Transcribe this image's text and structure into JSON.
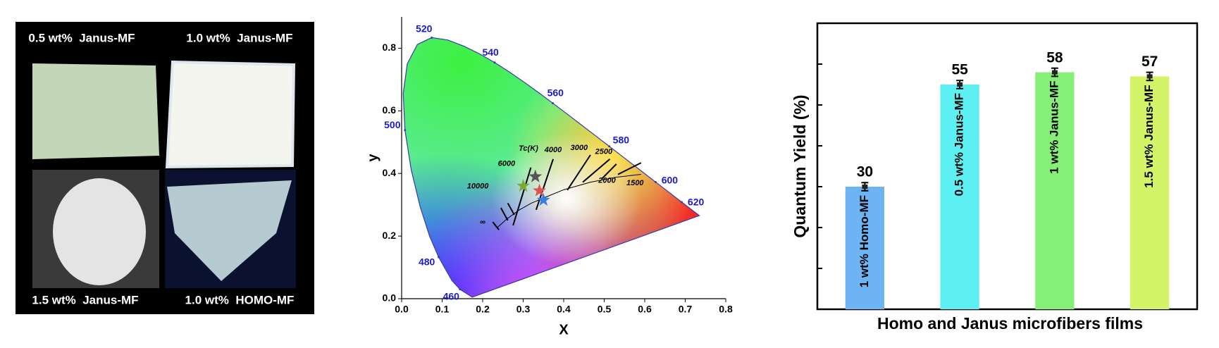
{
  "photos": {
    "labels": [
      "0.5 wt%  Janus-MF",
      "1.0 wt%  Janus-MF",
      "1.5 wt%  Janus-MF",
      "1.0 wt%  HOMO-MF"
    ]
  },
  "chart_data": [
    {
      "type": "cie",
      "xlabel": "X",
      "ylabel": "y",
      "xlim": [
        0,
        0.8
      ],
      "ylim": [
        0,
        0.9
      ],
      "xticks": [
        {
          "value": 0,
          "label": "0.0"
        },
        0.1,
        0.2,
        0.3,
        0.4,
        0.5,
        0.6,
        0.7,
        0.8
      ],
      "yticks": [
        {
          "value": 0,
          "label": "0.0"
        },
        0.2,
        0.4,
        0.6,
        0.8
      ],
      "spectral_locus": {
        "color": "#3a3aa8",
        "x": [
          0.1741,
          0.144,
          0.1241,
          0.0913,
          0.0687,
          0.0454,
          0.0235,
          0.0082,
          0.0039,
          0.0139,
          0.0389,
          0.0743,
          0.1142,
          0.1547,
          0.1929,
          0.2296,
          0.2658,
          0.3016,
          0.3373,
          0.3731,
          0.4087,
          0.4441,
          0.4788,
          0.5125,
          0.5448,
          0.5752,
          0.6029,
          0.627,
          0.6482,
          0.6658,
          0.6915,
          0.7347
        ],
        "y": [
          0.005,
          0.0297,
          0.0578,
          0.1327,
          0.2007,
          0.295,
          0.4127,
          0.5384,
          0.6548,
          0.7502,
          0.812,
          0.8338,
          0.8262,
          0.8059,
          0.7816,
          0.7543,
          0.7243,
          0.6923,
          0.6589,
          0.6245,
          0.5896,
          0.5547,
          0.5202,
          0.4866,
          0.4544,
          0.4242,
          0.3965,
          0.3725,
          0.3514,
          0.334,
          0.3083,
          0.2653
        ]
      },
      "wavelength_labels": [
        {
          "label": "460",
          "x": 0.144,
          "y": 0.0297
        },
        {
          "label": "480",
          "x": 0.0913,
          "y": 0.1327
        },
        {
          "label": "500",
          "x": 0.0082,
          "y": 0.5384
        },
        {
          "label": "520",
          "x": 0.0743,
          "y": 0.8338
        },
        {
          "label": "540",
          "x": 0.2296,
          "y": 0.7543
        },
        {
          "label": "560",
          "x": 0.3731,
          "y": 0.6245
        },
        {
          "label": "580",
          "x": 0.5125,
          "y": 0.4866
        },
        {
          "label": "600",
          "x": 0.627,
          "y": 0.3725
        },
        {
          "label": "620",
          "x": 0.6915,
          "y": 0.3083
        }
      ],
      "planckian_locus": {
        "x": [
          0.236,
          0.26,
          0.29,
          0.32,
          0.351,
          0.4,
          0.466,
          0.53,
          0.591
        ],
        "y": [
          0.227,
          0.255,
          0.283,
          0.305,
          0.322,
          0.348,
          0.372,
          0.388,
          0.397
        ]
      },
      "isotherms": [
        {
          "x": [
            0.225,
            0.24
          ],
          "y": [
            0.245,
            0.22
          ]
        },
        {
          "x": [
            0.245,
            0.262
          ],
          "y": [
            0.29,
            0.25
          ]
        },
        {
          "x": [
            0.262,
            0.278
          ],
          "y": [
            0.305,
            0.268
          ]
        },
        {
          "x": [
            0.275,
            0.319
          ],
          "y": [
            0.234,
            0.419
          ]
        },
        {
          "x": [
            0.332,
            0.374
          ],
          "y": [
            0.284,
            0.446
          ]
        },
        {
          "x": [
            0.409,
            0.466
          ],
          "y": [
            0.347,
            0.459
          ]
        },
        {
          "x": [
            0.447,
            0.514
          ],
          "y": [
            0.372,
            0.446
          ]
        },
        {
          "x": [
            0.495,
            0.53
          ],
          "y": [
            0.384,
            0.43
          ]
        },
        {
          "x": [
            0.534,
            0.591
          ],
          "y": [
            0.397,
            0.434
          ]
        }
      ],
      "annotations": [
        {
          "text": "Tc(K)",
          "x": 0.313,
          "y": 0.479
        },
        {
          "text": "10000",
          "x": 0.188,
          "y": 0.359
        },
        {
          "text": "6000",
          "x": 0.259,
          "y": 0.431
        },
        {
          "text": "4000",
          "x": 0.374,
          "y": 0.474
        },
        {
          "text": "3000",
          "x": 0.438,
          "y": 0.481
        },
        {
          "text": "2500",
          "x": 0.499,
          "y": 0.469
        },
        {
          "text": "2000",
          "x": 0.507,
          "y": 0.377
        },
        {
          "text": "1500",
          "x": 0.576,
          "y": 0.369
        },
        {
          "text": "∞",
          "x": 0.2,
          "y": 0.244
        }
      ],
      "points": [
        {
          "color": "#7fa83a",
          "x": 0.3,
          "y": 0.36
        },
        {
          "color": "#555555",
          "x": 0.33,
          "y": 0.39
        },
        {
          "color": "#e05050",
          "x": 0.34,
          "y": 0.345
        },
        {
          "color": "#3a7de0",
          "x": 0.35,
          "y": 0.315
        }
      ]
    },
    {
      "type": "bar",
      "xlabel": "Homo and Janus microfibers films",
      "ylabel": "Quantum Yield (%)",
      "categories": [
        "1 wt% Homo-MF",
        "0.5 wt% Janus-MF",
        "1 wt% Janus-MF",
        "1.5 wt% Janus-MF"
      ],
      "values": [
        30,
        55,
        58,
        57
      ],
      "errors": [
        1,
        1,
        1,
        1
      ],
      "colors": [
        "#6cb4f4",
        "#5cf0f2",
        "#86ef78",
        "#d4f468"
      ],
      "ylim": [
        0,
        70
      ],
      "yticks": [
        0,
        10,
        20,
        30,
        40,
        50,
        60,
        70
      ],
      "show_ytick_labels": false
    }
  ]
}
